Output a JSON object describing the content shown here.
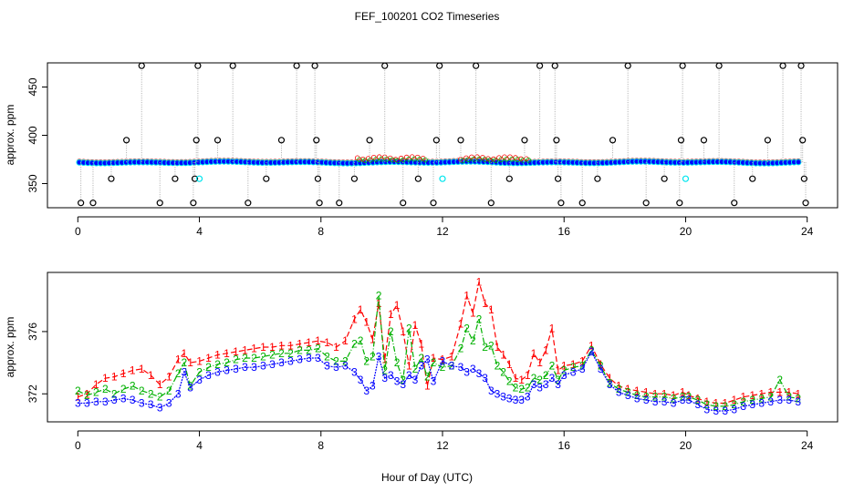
{
  "figure": {
    "title": "FEF_100201  CO2 Timeseries",
    "xlabel": "Hour of Day (UTC)"
  },
  "colors": {
    "series1": "#ff0000",
    "series2": "#00b000",
    "series3": "#0000ff",
    "points_main": "#000000",
    "points_fill": "#0000ff",
    "points_cyan": "#00e5ee",
    "vlines": "#aaaaaa"
  },
  "chart_data": [
    {
      "type": "scatter",
      "panel": "top",
      "ylabel": "approx. ppm",
      "xlim": [
        -1,
        25
      ],
      "ylim": [
        325,
        475
      ],
      "xticks": [
        0,
        4,
        8,
        12,
        16,
        20,
        24
      ],
      "yticks": [
        350,
        400,
        450
      ],
      "baseline_ppm": 372,
      "spikes": [
        {
          "x": 0.1,
          "y": 330
        },
        {
          "x": 0.5,
          "y": 330
        },
        {
          "x": 1.1,
          "y": 355
        },
        {
          "x": 1.6,
          "y": 395
        },
        {
          "x": 2.1,
          "y": 472
        },
        {
          "x": 2.7,
          "y": 330
        },
        {
          "x": 3.2,
          "y": 355
        },
        {
          "x": 3.8,
          "y": 330
        },
        {
          "x": 3.85,
          "y": 355
        },
        {
          "x": 3.9,
          "y": 395
        },
        {
          "x": 3.95,
          "y": 472
        },
        {
          "x": 4.6,
          "y": 395
        },
        {
          "x": 5.1,
          "y": 472
        },
        {
          "x": 5.6,
          "y": 330
        },
        {
          "x": 6.2,
          "y": 355
        },
        {
          "x": 6.7,
          "y": 395
        },
        {
          "x": 7.2,
          "y": 472
        },
        {
          "x": 7.8,
          "y": 472
        },
        {
          "x": 7.85,
          "y": 395
        },
        {
          "x": 7.9,
          "y": 355
        },
        {
          "x": 7.95,
          "y": 330
        },
        {
          "x": 8.6,
          "y": 330
        },
        {
          "x": 9.1,
          "y": 355
        },
        {
          "x": 9.6,
          "y": 395
        },
        {
          "x": 10.1,
          "y": 472
        },
        {
          "x": 10.7,
          "y": 330
        },
        {
          "x": 11.2,
          "y": 355
        },
        {
          "x": 11.7,
          "y": 330
        },
        {
          "x": 11.8,
          "y": 395
        },
        {
          "x": 11.9,
          "y": 472
        },
        {
          "x": 12.6,
          "y": 395
        },
        {
          "x": 13.1,
          "y": 472
        },
        {
          "x": 13.6,
          "y": 330
        },
        {
          "x": 14.2,
          "y": 355
        },
        {
          "x": 14.7,
          "y": 395
        },
        {
          "x": 15.2,
          "y": 472
        },
        {
          "x": 15.7,
          "y": 472
        },
        {
          "x": 15.75,
          "y": 395
        },
        {
          "x": 15.8,
          "y": 355
        },
        {
          "x": 15.9,
          "y": 330
        },
        {
          "x": 16.6,
          "y": 330
        },
        {
          "x": 17.1,
          "y": 355
        },
        {
          "x": 17.6,
          "y": 395
        },
        {
          "x": 18.1,
          "y": 472
        },
        {
          "x": 18.7,
          "y": 330
        },
        {
          "x": 19.3,
          "y": 355
        },
        {
          "x": 19.8,
          "y": 330
        },
        {
          "x": 19.85,
          "y": 395
        },
        {
          "x": 19.9,
          "y": 472
        },
        {
          "x": 20.6,
          "y": 395
        },
        {
          "x": 21.1,
          "y": 472
        },
        {
          "x": 21.6,
          "y": 330
        },
        {
          "x": 22.2,
          "y": 355
        },
        {
          "x": 22.7,
          "y": 395
        },
        {
          "x": 23.2,
          "y": 472
        },
        {
          "x": 23.8,
          "y": 472
        },
        {
          "x": 23.85,
          "y": 395
        },
        {
          "x": 23.9,
          "y": 355
        },
        {
          "x": 23.95,
          "y": 330
        }
      ],
      "cyan_points": [
        {
          "x": 4.0,
          "y": 355
        },
        {
          "x": 12.0,
          "y": 355
        },
        {
          "x": 20.0,
          "y": 355
        }
      ]
    },
    {
      "type": "line",
      "panel": "bottom",
      "ylabel": "approx. ppm",
      "xlim": [
        -1,
        25
      ],
      "ylim": [
        370.2,
        379.8
      ],
      "xticks": [
        0,
        4,
        8,
        12,
        16,
        20,
        24
      ],
      "yticks": [
        372,
        376
      ],
      "series": [
        {
          "name": "1",
          "x": [
            0.0,
            0.3,
            0.6,
            0.9,
            1.2,
            1.5,
            1.8,
            2.1,
            2.4,
            2.7,
            3.0,
            3.3,
            3.5,
            3.7,
            4.0,
            4.3,
            4.6,
            4.9,
            5.2,
            5.5,
            5.8,
            6.1,
            6.4,
            6.7,
            7.0,
            7.3,
            7.6,
            7.9,
            8.2,
            8.5,
            8.8,
            9.1,
            9.3,
            9.5,
            9.7,
            9.9,
            10.1,
            10.3,
            10.5,
            10.7,
            10.9,
            11.1,
            11.3,
            11.5,
            11.7,
            12.0,
            12.3,
            12.6,
            12.8,
            13.0,
            13.2,
            13.4,
            13.6,
            13.8,
            14.0,
            14.2,
            14.4,
            14.6,
            14.8,
            15.0,
            15.2,
            15.4,
            15.6,
            15.8,
            16.0,
            16.3,
            16.6,
            16.9,
            17.2,
            17.5,
            17.8,
            18.1,
            18.4,
            18.7,
            19.0,
            19.3,
            19.6,
            19.9,
            20.1,
            20.4,
            20.7,
            21.0,
            21.3,
            21.6,
            21.9,
            22.2,
            22.5,
            22.8,
            23.1,
            23.4,
            23.7
          ],
          "values": [
            371.8,
            372.0,
            372.6,
            373.0,
            373.1,
            373.3,
            373.5,
            373.6,
            373.2,
            372.6,
            373.1,
            374.2,
            374.6,
            374.0,
            374.1,
            374.3,
            374.5,
            374.6,
            374.7,
            374.8,
            374.9,
            375.0,
            375.0,
            375.1,
            375.1,
            375.2,
            375.3,
            375.4,
            375.3,
            375.0,
            375.4,
            376.8,
            377.4,
            376.6,
            375.5,
            377.8,
            374.2,
            377.1,
            377.7,
            376.0,
            373.8,
            376.4,
            375.2,
            372.5,
            374.3,
            374.2,
            374.4,
            376.5,
            378.3,
            377.2,
            379.2,
            377.8,
            377.4,
            375.0,
            374.5,
            373.9,
            373.0,
            372.9,
            373.2,
            374.6,
            374.0,
            374.8,
            376.2,
            373.5,
            373.8,
            373.9,
            374.1,
            375.1,
            373.9,
            373.0,
            372.5,
            372.3,
            372.2,
            372.1,
            372.0,
            372.0,
            371.9,
            372.1,
            371.9,
            371.7,
            371.5,
            371.4,
            371.4,
            371.6,
            371.8,
            371.9,
            372.0,
            372.1,
            372.1,
            372.1,
            372.0
          ]
        },
        {
          "name": "2",
          "x": [
            0.0,
            0.3,
            0.6,
            0.9,
            1.2,
            1.5,
            1.8,
            2.1,
            2.4,
            2.7,
            3.0,
            3.3,
            3.5,
            3.7,
            4.0,
            4.3,
            4.6,
            4.9,
            5.2,
            5.5,
            5.8,
            6.1,
            6.4,
            6.7,
            7.0,
            7.3,
            7.6,
            7.9,
            8.2,
            8.5,
            8.8,
            9.1,
            9.3,
            9.5,
            9.7,
            9.9,
            10.1,
            10.3,
            10.5,
            10.7,
            10.9,
            11.1,
            11.3,
            11.5,
            11.7,
            12.0,
            12.3,
            12.6,
            12.8,
            13.0,
            13.2,
            13.4,
            13.6,
            13.8,
            14.0,
            14.2,
            14.4,
            14.6,
            14.8,
            15.0,
            15.2,
            15.4,
            15.6,
            15.8,
            16.0,
            16.3,
            16.6,
            16.9,
            17.2,
            17.5,
            17.8,
            18.1,
            18.4,
            18.7,
            19.0,
            19.3,
            19.6,
            19.9,
            20.1,
            20.4,
            20.7,
            21.0,
            21.3,
            21.6,
            21.9,
            22.2,
            22.5,
            22.8,
            23.1,
            23.4,
            23.7
          ],
          "values": [
            372.2,
            371.9,
            372.1,
            372.3,
            372.0,
            372.3,
            372.5,
            372.2,
            372.0,
            371.8,
            372.2,
            373.3,
            374.0,
            372.5,
            373.4,
            373.7,
            373.9,
            374.0,
            374.2,
            374.3,
            374.3,
            374.4,
            374.5,
            374.6,
            374.6,
            374.8,
            374.8,
            374.9,
            374.4,
            374.1,
            374.1,
            375.2,
            375.4,
            374.1,
            374.4,
            378.3,
            373.5,
            376.0,
            374.0,
            372.9,
            376.2,
            373.6,
            374.3,
            373.1,
            374.0,
            373.7,
            373.8,
            374.9,
            376.2,
            375.4,
            376.8,
            375.0,
            375.1,
            373.8,
            373.4,
            372.8,
            372.4,
            372.3,
            372.4,
            373.0,
            372.9,
            373.2,
            373.8,
            372.9,
            373.5,
            373.7,
            373.8,
            374.8,
            373.8,
            372.7,
            372.3,
            372.1,
            371.9,
            371.8,
            371.8,
            371.8,
            371.7,
            371.8,
            371.8,
            371.6,
            371.3,
            371.2,
            371.2,
            371.3,
            371.5,
            371.6,
            371.7,
            371.8,
            372.9,
            371.8,
            371.7
          ]
        },
        {
          "name": "3",
          "x": [
            0.0,
            0.3,
            0.6,
            0.9,
            1.2,
            1.5,
            1.8,
            2.1,
            2.4,
            2.7,
            3.0,
            3.3,
            3.5,
            3.7,
            4.0,
            4.3,
            4.6,
            4.9,
            5.2,
            5.5,
            5.8,
            6.1,
            6.4,
            6.7,
            7.0,
            7.3,
            7.6,
            7.9,
            8.2,
            8.5,
            8.8,
            9.1,
            9.3,
            9.5,
            9.7,
            9.9,
            10.1,
            10.3,
            10.5,
            10.7,
            10.9,
            11.1,
            11.3,
            11.5,
            11.7,
            12.0,
            12.3,
            12.6,
            12.8,
            13.0,
            13.2,
            13.4,
            13.6,
            13.8,
            14.0,
            14.2,
            14.4,
            14.6,
            14.8,
            15.0,
            15.2,
            15.4,
            15.6,
            15.8,
            16.0,
            16.3,
            16.6,
            16.9,
            17.2,
            17.5,
            17.8,
            18.1,
            18.4,
            18.7,
            19.0,
            19.3,
            19.6,
            19.9,
            20.1,
            20.4,
            20.7,
            21.0,
            21.3,
            21.6,
            21.9,
            22.2,
            22.5,
            22.8,
            23.1,
            23.4,
            23.7
          ],
          "values": [
            371.4,
            371.4,
            371.5,
            371.5,
            371.6,
            371.7,
            371.6,
            371.4,
            371.3,
            371.1,
            371.4,
            372.0,
            373.4,
            372.4,
            372.9,
            373.2,
            373.4,
            373.5,
            373.6,
            373.7,
            373.7,
            373.8,
            373.9,
            374.0,
            374.1,
            374.2,
            374.3,
            374.3,
            373.8,
            373.7,
            373.8,
            373.4,
            372.9,
            372.2,
            372.5,
            374.4,
            373.0,
            373.2,
            372.8,
            372.6,
            373.2,
            372.9,
            373.8,
            374.2,
            372.8,
            374.1,
            373.8,
            373.7,
            373.4,
            373.6,
            373.3,
            373.0,
            372.2,
            372.0,
            371.8,
            371.7,
            371.6,
            371.6,
            371.8,
            372.6,
            372.4,
            372.6,
            373.0,
            372.6,
            373.2,
            373.4,
            373.6,
            374.7,
            373.6,
            372.6,
            372.1,
            371.9,
            371.7,
            371.6,
            371.5,
            371.5,
            371.4,
            371.6,
            371.6,
            371.3,
            371.0,
            370.9,
            370.9,
            371.0,
            371.2,
            371.3,
            371.4,
            371.5,
            371.6,
            371.6,
            371.5
          ]
        }
      ]
    }
  ]
}
